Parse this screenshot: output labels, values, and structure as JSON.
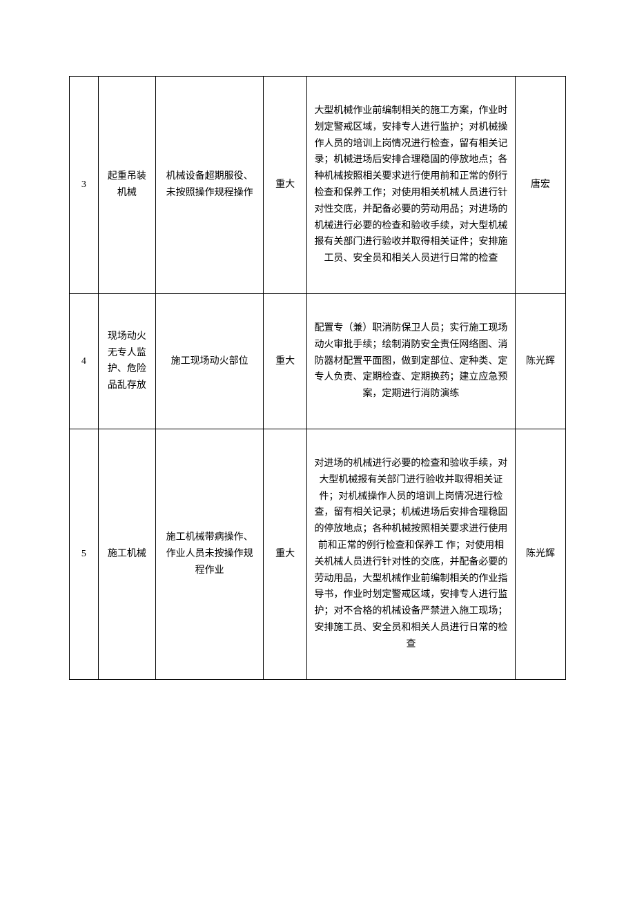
{
  "table": {
    "columns": {
      "num_width": 40,
      "name_width": 80,
      "desc_width": 150,
      "level_width": 60,
      "measures_width": 290,
      "person_width": 70
    },
    "styling": {
      "border_color": "#000000",
      "text_color": "#000000",
      "background_color": "#ffffff",
      "font_size": 14,
      "line_height": 1.7,
      "cell_padding": "38px 10px",
      "font_family": "SimSun"
    },
    "rows": [
      {
        "num": "3",
        "name": "起重吊装机械",
        "desc": "机械设备超期服役、未按照操作规程操作",
        "level": "重大",
        "measures": "大型机械作业前编制相关的施工方案，作业时划定警戒区域，安排专人进行监护；对机械操作人员的培训上岗情况进行检查，留有相关记录；机械进场后安排合理稳固的停放地点；各种机械按照相关要求进行使用前和正常的例行检查和保养工作；对使用相关机械人员进行针对性交底，并配备必要的劳动用品；对进场的机械进行必要的检查和验收手续，对大型机械报有关部门进行验收并取得相关证件；安排施工员、安全员和相关人员进行日常的检查",
        "person": "唐宏"
      },
      {
        "num": "4",
        "name": "现场动火无专人监护、危险品乱存放",
        "desc": "施工现场动火部位",
        "level": "重大",
        "measures": "配置专（兼）职消防保卫人员；实行施工现场动火审批手续；绘制消防安全责任网络图、消防器材配置平面图，做到定部位、定种类、定专人负责、定期检查、定期换药；建立应急预案，定期进行消防演练",
        "person": "陈光辉"
      },
      {
        "num": "5",
        "name": "施工机械",
        "desc": "施工机械带病操作、作业人员未按操作规程作业",
        "level": "重大",
        "measures": "对进场的机械进行必要的检查和验收手续，对大型机械报有关部门进行验收并取得相关证件；对机械操作人员的培训上岗情况进行检查，留有相关记录；机械进场后安排合理稳固的停放地点；各种机械按照相关要求进行使用前和正常的例行检查和保养工\n作；对使用相关机械人员进行针对性的交底，并配备必要的劳动用品，大型机械作业前编制相关的作业指导书，作业时划定警戒区域，安排专人进行监护；对不合格的机械设备严禁进入施工现场；安排施工员、安全员和相关人员进行日常的检查",
        "person": "陈光辉"
      }
    ]
  }
}
